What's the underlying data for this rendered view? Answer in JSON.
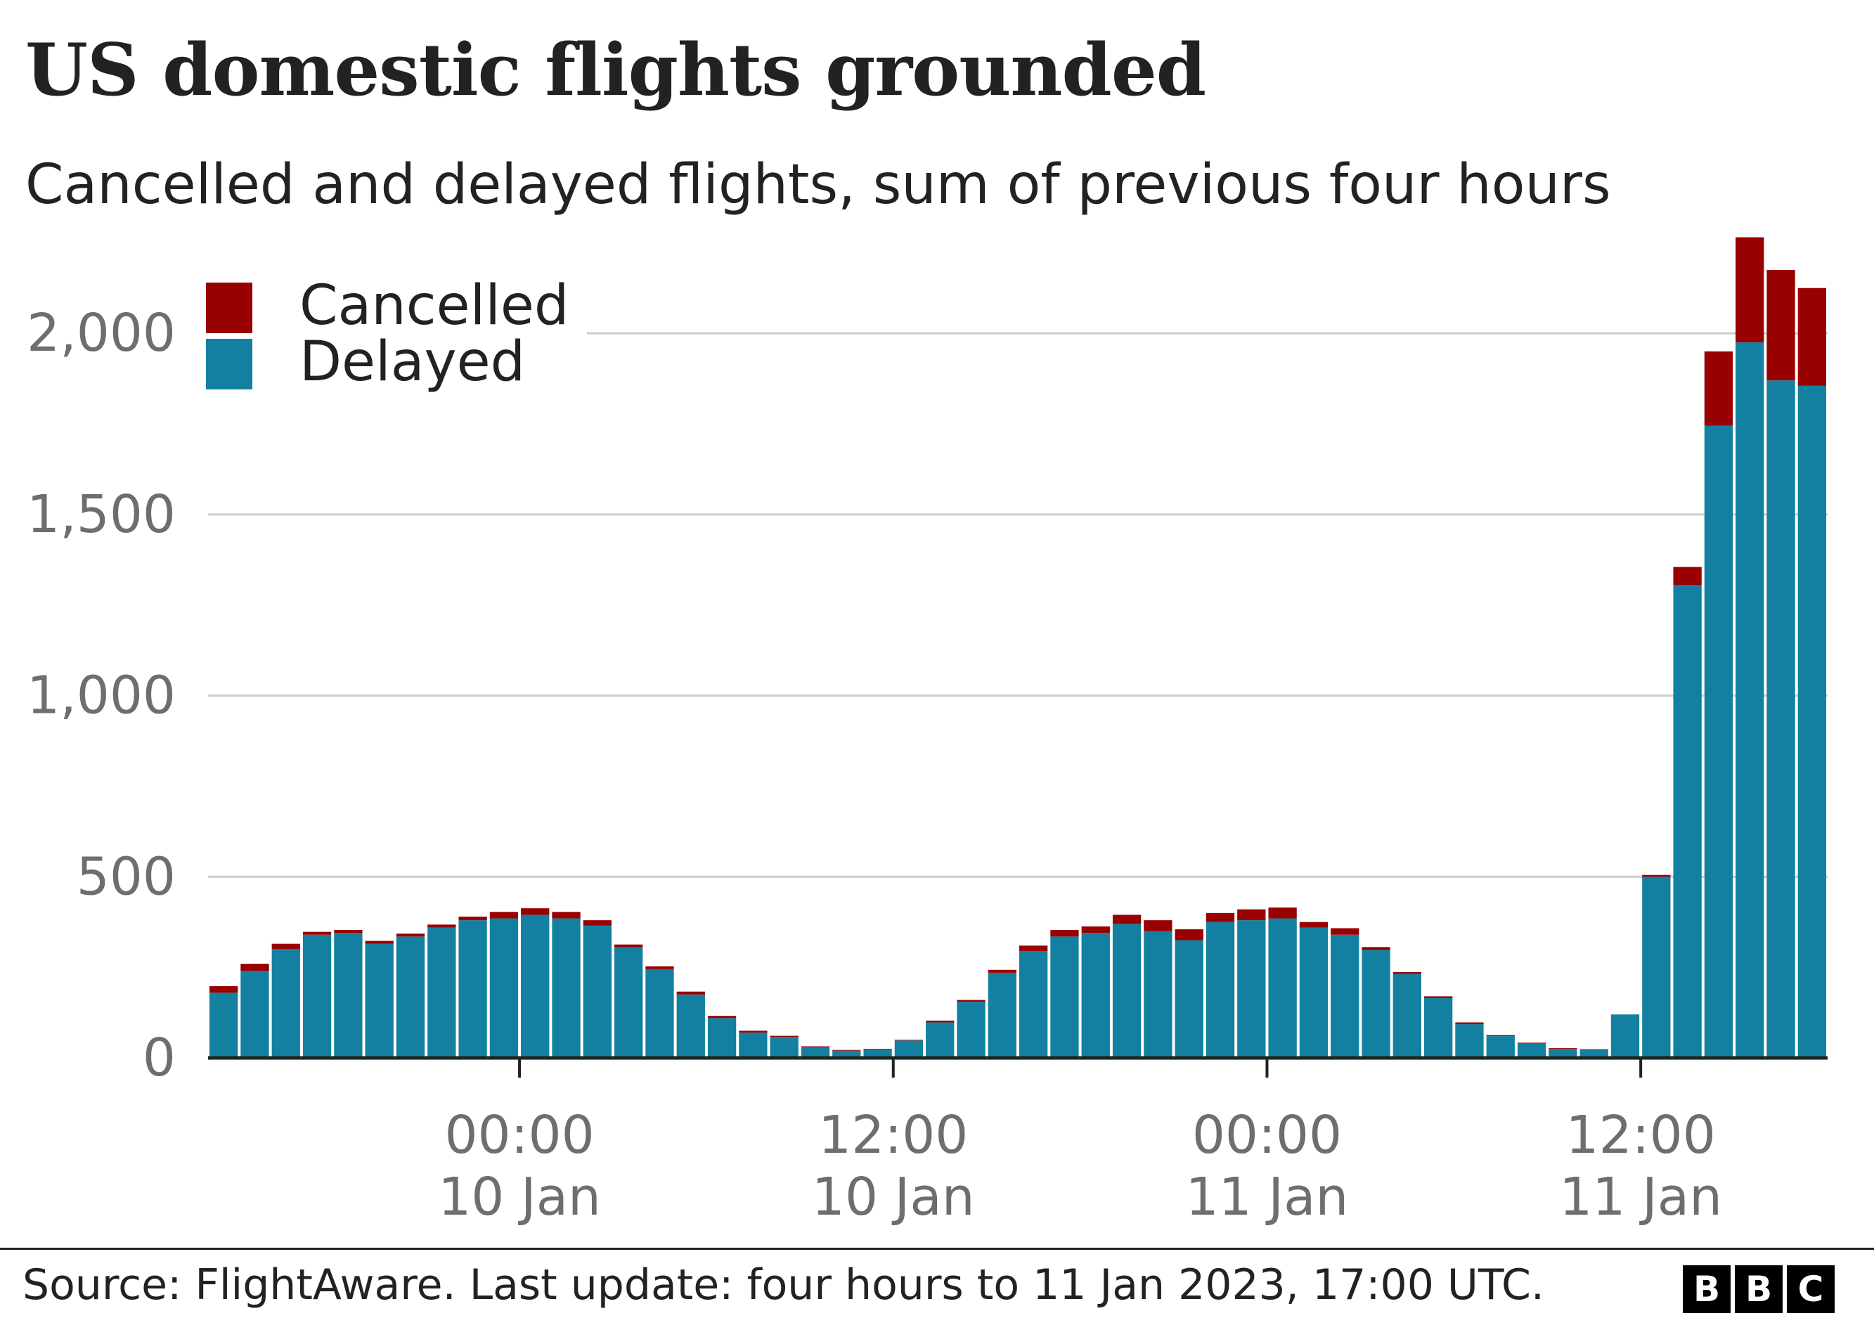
{
  "title": "US domestic flights grounded",
  "subtitle": "Cancelled and delayed flights, sum of previous four hours",
  "source": "Source: FlightAware. Last update: four hours to 11 Jan 2023, 17:00 UTC.",
  "logo": [
    "B",
    "B",
    "C"
  ],
  "colors": {
    "cancelled": "#990000",
    "delayed": "#1380A1",
    "grid": "#cccccc",
    "axis": "#222222",
    "tick_text": "#6e6e6e"
  },
  "chart_data": {
    "type": "bar",
    "stacked": true,
    "title": "US domestic flights grounded",
    "subtitle": "Cancelled and delayed flights, sum of previous four hours",
    "ylim": [
      0,
      2270
    ],
    "yticks": [
      0,
      500,
      1000,
      1500,
      2000
    ],
    "ytick_labels": [
      "0",
      "500",
      "1,000",
      "1,500",
      "2,000"
    ],
    "x_start_hour_offset": -10,
    "x_step_hours": 1,
    "xticks": [
      {
        "hour": 0,
        "time": "00:00",
        "date": "10 Jan"
      },
      {
        "hour": 12,
        "time": "12:00",
        "date": "10 Jan"
      },
      {
        "hour": 24,
        "time": "00:00",
        "date": "11 Jan"
      },
      {
        "hour": 36,
        "time": "12:00",
        "date": "11 Jan"
      }
    ],
    "legend": {
      "position": "top-left",
      "entries": [
        "Cancelled",
        "Delayed"
      ]
    },
    "series": [
      {
        "name": "Delayed",
        "color": "#1380A1",
        "values": [
          180,
          240,
          300,
          340,
          345,
          315,
          335,
          360,
          380,
          385,
          395,
          385,
          365,
          305,
          245,
          175,
          110,
          70,
          58,
          30,
          20,
          23,
          48,
          98,
          155,
          235,
          295,
          335,
          345,
          370,
          350,
          325,
          375,
          380,
          385,
          360,
          340,
          298,
          232,
          165,
          93,
          60,
          40,
          25,
          22,
          120,
          500,
          1305,
          1745,
          1975,
          1870,
          1855
        ]
      },
      {
        "name": "Cancelled",
        "color": "#990000",
        "values": [
          18,
          20,
          15,
          8,
          8,
          8,
          8,
          8,
          10,
          18,
          18,
          18,
          15,
          8,
          8,
          8,
          6,
          5,
          3,
          2,
          2,
          2,
          2,
          5,
          5,
          8,
          15,
          18,
          18,
          25,
          30,
          30,
          25,
          30,
          30,
          15,
          18,
          8,
          5,
          5,
          5,
          3,
          2,
          2,
          2,
          0,
          5,
          50,
          205,
          290,
          305,
          270
        ]
      }
    ]
  }
}
